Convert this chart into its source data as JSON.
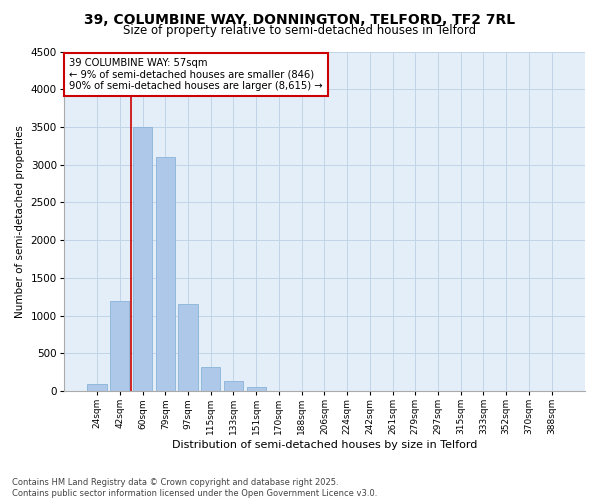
{
  "title_line1": "39, COLUMBINE WAY, DONNINGTON, TELFORD, TF2 7RL",
  "title_line2": "Size of property relative to semi-detached houses in Telford",
  "xlabel": "Distribution of semi-detached houses by size in Telford",
  "ylabel": "Number of semi-detached properties",
  "categories": [
    "24sqm",
    "42sqm",
    "60sqm",
    "79sqm",
    "97sqm",
    "115sqm",
    "133sqm",
    "151sqm",
    "170sqm",
    "188sqm",
    "206sqm",
    "224sqm",
    "242sqm",
    "261sqm",
    "279sqm",
    "297sqm",
    "315sqm",
    "333sqm",
    "352sqm",
    "370sqm",
    "388sqm"
  ],
  "values": [
    100,
    1200,
    3500,
    3100,
    1150,
    320,
    130,
    55,
    5,
    0,
    0,
    0,
    0,
    0,
    0,
    0,
    0,
    0,
    0,
    0,
    0
  ],
  "bar_color": "#adc8e8",
  "bar_edge_color": "#8ab4d8",
  "annotation_title": "39 COLUMBINE WAY: 57sqm",
  "annotation_line1": "← 9% of semi-detached houses are smaller (846)",
  "annotation_line2": "90% of semi-detached houses are larger (8,615) →",
  "vline_color": "#cc0000",
  "vline_x": 1.5,
  "ylim": [
    0,
    4500
  ],
  "yticks": [
    0,
    500,
    1000,
    1500,
    2000,
    2500,
    3000,
    3500,
    4000,
    4500
  ],
  "grid_color": "#c0d4e8",
  "bg_color": "#e4eef8",
  "footer_line1": "Contains HM Land Registry data © Crown copyright and database right 2025.",
  "footer_line2": "Contains public sector information licensed under the Open Government Licence v3.0."
}
